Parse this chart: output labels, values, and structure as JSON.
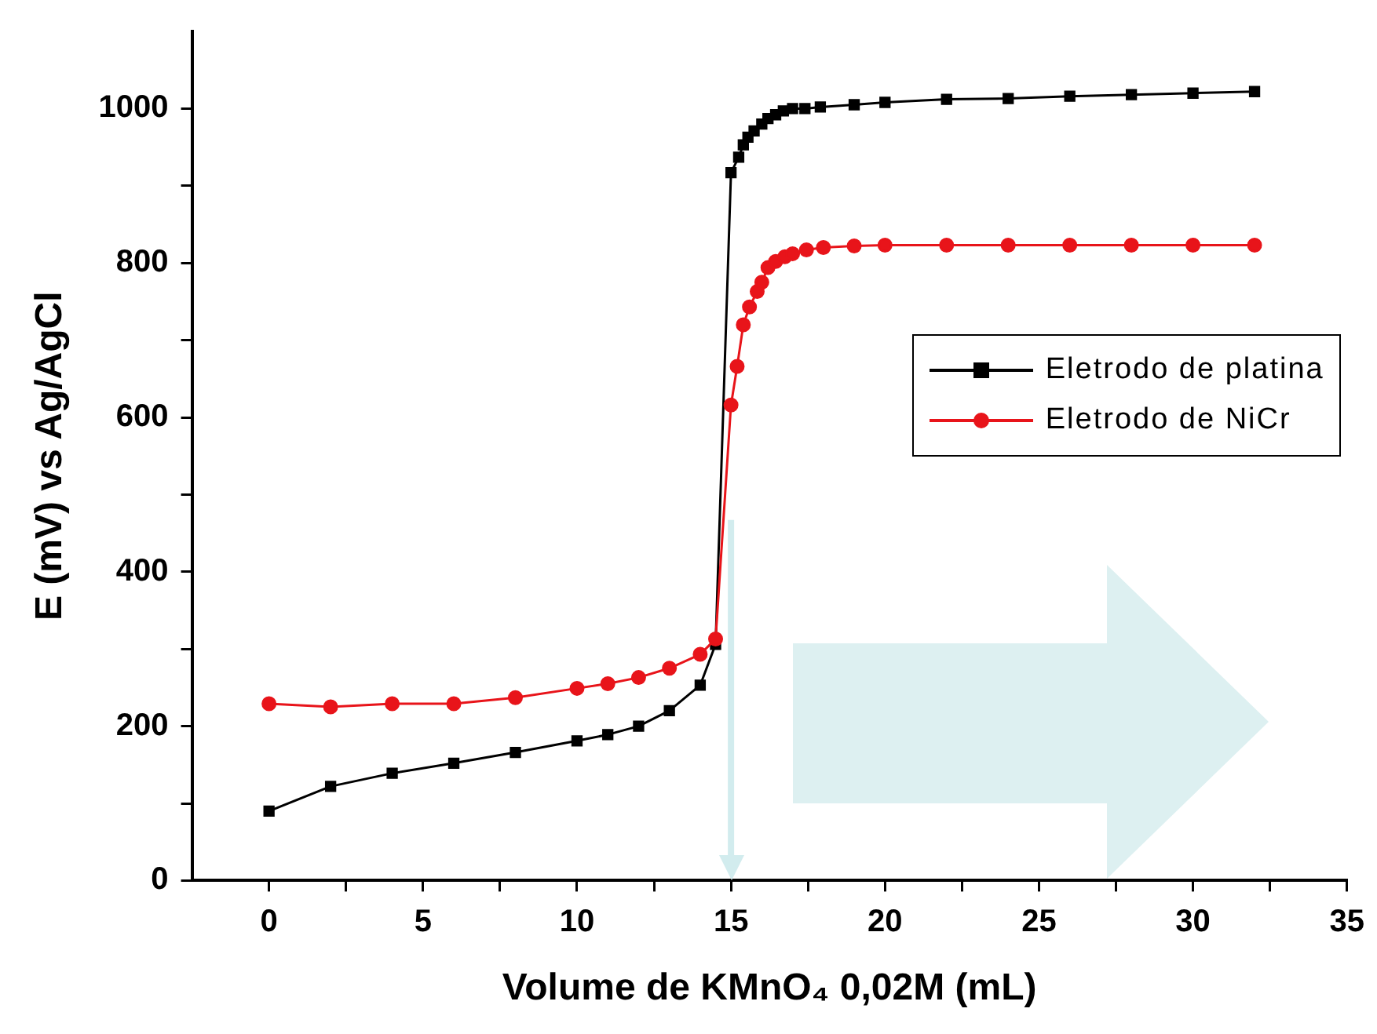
{
  "chart_data": {
    "type": "line",
    "xlabel": "Volume de KMnO₄ 0,02M (mL)",
    "ylabel": "E (mV) vs Ag/AgCl",
    "xlim": [
      -2.5,
      35
    ],
    "xticks": [
      0,
      {
        "value": 2.5,
        "label": null
      },
      5,
      {
        "value": 7.5,
        "label": null
      },
      10,
      {
        "value": 12.5,
        "label": null
      },
      15,
      {
        "value": 17.5,
        "label": null
      },
      20,
      {
        "value": 22.5,
        "label": null
      },
      25,
      {
        "value": 27.5,
        "label": null
      },
      30,
      {
        "value": 32.5,
        "label": null
      },
      35
    ],
    "ylim": [
      0,
      1100
    ],
    "yticks": [
      0,
      {
        "value": 100,
        "label": null
      },
      200,
      {
        "value": 300,
        "label": null
      },
      400,
      {
        "value": 500,
        "label": null
      },
      600,
      {
        "value": 700,
        "label": null
      },
      800,
      {
        "value": 900,
        "label": null
      },
      1000
    ],
    "grid": false,
    "legend": "right",
    "line_style": "solid",
    "ref_lines": [
      {
        "axis": "x",
        "value": 15,
        "color": "#d2ecee"
      }
    ],
    "series": [
      {
        "name": "Eletrodo de platina",
        "color": "#000000",
        "marker": "square",
        "x": [
          0,
          2,
          4,
          6,
          8,
          10,
          11,
          12,
          13,
          14,
          14.5,
          15,
          15.25,
          15.4,
          15.55,
          15.75,
          16,
          16.2,
          16.45,
          16.7,
          17,
          17.4,
          17.9,
          19,
          20,
          22,
          24,
          26,
          28,
          30,
          32
        ],
        "values": [
          90,
          122,
          139,
          152,
          166,
          181,
          189,
          200,
          220,
          253,
          306,
          917,
          937,
          953,
          963,
          971,
          980,
          987,
          992,
          997,
          1000,
          1000,
          1002,
          1005,
          1008,
          1012,
          1013,
          1016,
          1018,
          1020,
          1022
        ]
      },
      {
        "name": "Eletrodo de NiCr",
        "color": "#e8141a",
        "marker": "circle",
        "x": [
          0,
          2,
          4,
          6,
          8,
          10,
          11,
          12,
          13,
          14,
          14.5,
          15,
          15.2,
          15.4,
          15.6,
          15.85,
          16,
          16.2,
          16.45,
          16.75,
          17,
          17.45,
          18,
          19,
          20,
          22,
          24,
          26,
          28,
          30,
          32
        ],
        "values": [
          229,
          225,
          229,
          229,
          237,
          249,
          255,
          263,
          275,
          293,
          313,
          616,
          666,
          720,
          743,
          763,
          775,
          794,
          802,
          808,
          812,
          817,
          820,
          822,
          823,
          823,
          823,
          823,
          823,
          823,
          823
        ]
      }
    ]
  }
}
